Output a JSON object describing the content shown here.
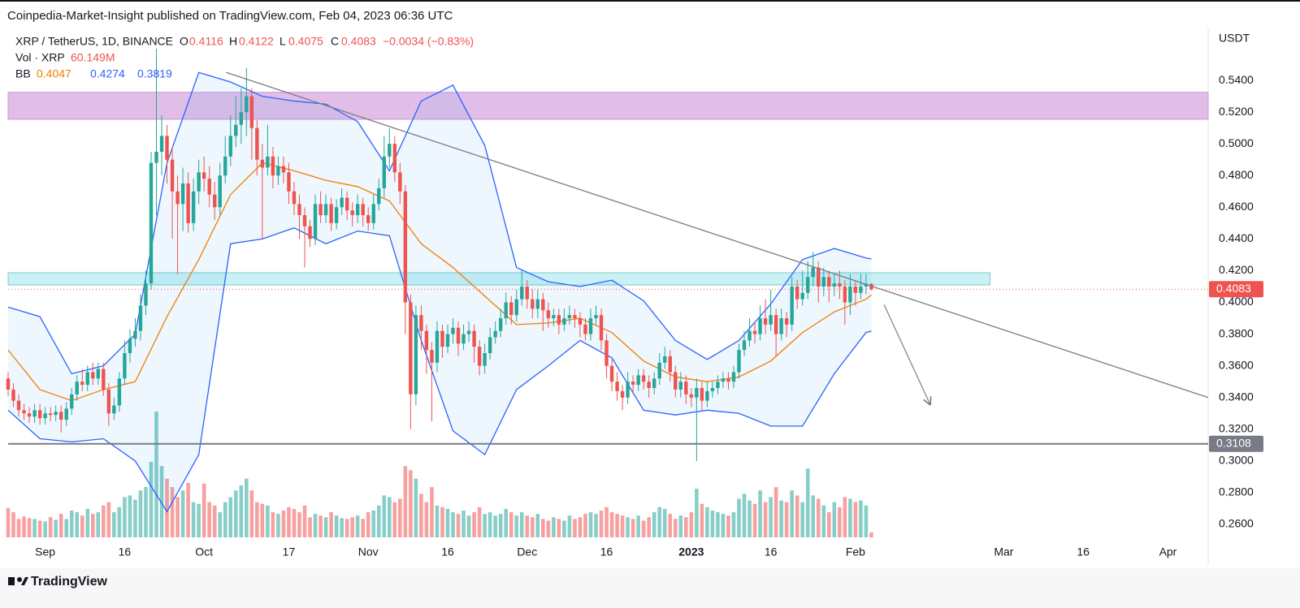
{
  "header": "Coinpedia-Market-Insight published on TradingView.com, Feb 04, 2023 06:36 UTC",
  "footer": "TradingView",
  "chart_data": {
    "type": "candlestick",
    "symbol": "XRP / TetherUS, 1D, BINANCE",
    "ohlc_letters": [
      "O",
      "H",
      "L",
      "C"
    ],
    "change": "−0.0034 (−0.83%)",
    "volume_name": "Vol · XRP",
    "volume_label": "60.149M",
    "bb_name": "BB",
    "currency": "USDT",
    "up_color": "#26a69a",
    "down_color": "#ef5350",
    "xlim": [
      0,
      226.6
    ],
    "xticks": [
      {
        "value": 7,
        "label": "Sep"
      },
      {
        "value": 22,
        "label": "16"
      },
      {
        "value": 37,
        "label": "Oct"
      },
      {
        "value": 53,
        "label": "17"
      },
      {
        "value": 68,
        "label": "Nov"
      },
      {
        "value": 83,
        "label": "16"
      },
      {
        "value": 98,
        "label": "Dec"
      },
      {
        "value": 113,
        "label": "16"
      },
      {
        "value": 129,
        "label": "2023"
      },
      {
        "value": 144,
        "label": "16"
      },
      {
        "value": 160,
        "label": "Feb"
      },
      {
        "value": 188,
        "label": "Mar"
      },
      {
        "value": 203,
        "label": "16"
      },
      {
        "value": 219,
        "label": "Apr"
      }
    ],
    "ylim": [
      0.2349,
      0.5728
    ],
    "yticks": [
      {
        "value": 0.26,
        "label": "0.2600"
      },
      {
        "value": 0.28,
        "label": "0.2800"
      },
      {
        "value": 0.3,
        "label": "0.3000"
      },
      {
        "value": 0.32,
        "label": "0.3200"
      },
      {
        "value": 0.34,
        "label": "0.3400"
      },
      {
        "value": 0.36,
        "label": "0.3600"
      },
      {
        "value": 0.38,
        "label": "0.3800"
      },
      {
        "value": 0.4,
        "label": "0.4000"
      },
      {
        "value": 0.42,
        "label": "0.4200"
      },
      {
        "value": 0.44,
        "label": "0.4400"
      },
      {
        "value": 0.46,
        "label": "0.4600"
      },
      {
        "value": 0.48,
        "label": "0.4800"
      },
      {
        "value": 0.5,
        "label": "0.5000"
      },
      {
        "value": 0.52,
        "label": "0.5200"
      },
      {
        "value": 0.54,
        "label": "0.5400"
      }
    ],
    "grid": false,
    "candles": [
      [
        0.352,
        0.356,
        0.341,
        0.345
      ],
      [
        0.345,
        0.349,
        0.334,
        0.338
      ],
      [
        0.338,
        0.342,
        0.328,
        0.332
      ],
      [
        0.332,
        0.336,
        0.326,
        0.33
      ],
      [
        0.33,
        0.334,
        0.324,
        0.328
      ],
      [
        0.328,
        0.336,
        0.324,
        0.332
      ],
      [
        0.332,
        0.336,
        0.323,
        0.327
      ],
      [
        0.327,
        0.334,
        0.323,
        0.33
      ],
      [
        0.33,
        0.334,
        0.325,
        0.329
      ],
      [
        0.329,
        0.335,
        0.325,
        0.331
      ],
      [
        0.331,
        0.335,
        0.318,
        0.326
      ],
      [
        0.326,
        0.337,
        0.322,
        0.333
      ],
      [
        0.333,
        0.346,
        0.329,
        0.342
      ],
      [
        0.342,
        0.354,
        0.338,
        0.35
      ],
      [
        0.35,
        0.358,
        0.344,
        0.348
      ],
      [
        0.348,
        0.36,
        0.344,
        0.356
      ],
      [
        0.356,
        0.362,
        0.348,
        0.352
      ],
      [
        0.352,
        0.362,
        0.348,
        0.358
      ],
      [
        0.358,
        0.362,
        0.341,
        0.345
      ],
      [
        0.345,
        0.349,
        0.322,
        0.33
      ],
      [
        0.33,
        0.34,
        0.326,
        0.335
      ],
      [
        0.335,
        0.356,
        0.331,
        0.352
      ],
      [
        0.352,
        0.376,
        0.348,
        0.368
      ],
      [
        0.368,
        0.383,
        0.362,
        0.377
      ],
      [
        0.377,
        0.39,
        0.372,
        0.382
      ],
      [
        0.382,
        0.405,
        0.376,
        0.398
      ],
      [
        0.398,
        0.42,
        0.392,
        0.412
      ],
      [
        0.412,
        0.495,
        0.408,
        0.488
      ],
      [
        0.488,
        0.56,
        0.455,
        0.495
      ],
      [
        0.495,
        0.518,
        0.48,
        0.505
      ],
      [
        0.505,
        0.512,
        0.475,
        0.49
      ],
      [
        0.49,
        0.498,
        0.44,
        0.47
      ],
      [
        0.47,
        0.48,
        0.418,
        0.462
      ],
      [
        0.462,
        0.485,
        0.445,
        0.475
      ],
      [
        0.475,
        0.482,
        0.444,
        0.45
      ],
      [
        0.45,
        0.478,
        0.445,
        0.47
      ],
      [
        0.47,
        0.49,
        0.462,
        0.482
      ],
      [
        0.482,
        0.492,
        0.47,
        0.478
      ],
      [
        0.478,
        0.486,
        0.46,
        0.468
      ],
      [
        0.468,
        0.476,
        0.452,
        0.46
      ],
      [
        0.46,
        0.488,
        0.455,
        0.48
      ],
      [
        0.48,
        0.505,
        0.475,
        0.492
      ],
      [
        0.492,
        0.518,
        0.486,
        0.505
      ],
      [
        0.505,
        0.53,
        0.498,
        0.512
      ],
      [
        0.512,
        0.535,
        0.5,
        0.52
      ],
      [
        0.52,
        0.548,
        0.505,
        0.53
      ],
      [
        0.53,
        0.535,
        0.49,
        0.51
      ],
      [
        0.51,
        0.515,
        0.48,
        0.49
      ],
      [
        0.49,
        0.5,
        0.44,
        0.485
      ],
      [
        0.485,
        0.512,
        0.48,
        0.492
      ],
      [
        0.492,
        0.498,
        0.472,
        0.48
      ],
      [
        0.48,
        0.492,
        0.474,
        0.486
      ],
      [
        0.486,
        0.492,
        0.475,
        0.482
      ],
      [
        0.482,
        0.488,
        0.462,
        0.47
      ],
      [
        0.47,
        0.476,
        0.455,
        0.462
      ],
      [
        0.462,
        0.468,
        0.44,
        0.455
      ],
      [
        0.455,
        0.46,
        0.422,
        0.448
      ],
      [
        0.448,
        0.452,
        0.435,
        0.44
      ],
      [
        0.44,
        0.468,
        0.436,
        0.462
      ],
      [
        0.462,
        0.47,
        0.45,
        0.455
      ],
      [
        0.455,
        0.468,
        0.45,
        0.462
      ],
      [
        0.462,
        0.466,
        0.445,
        0.45
      ],
      [
        0.45,
        0.465,
        0.446,
        0.46
      ],
      [
        0.46,
        0.472,
        0.455,
        0.466
      ],
      [
        0.466,
        0.47,
        0.452,
        0.458
      ],
      [
        0.458,
        0.463,
        0.448,
        0.455
      ],
      [
        0.455,
        0.468,
        0.45,
        0.462
      ],
      [
        0.462,
        0.466,
        0.448,
        0.455
      ],
      [
        0.455,
        0.46,
        0.445,
        0.45
      ],
      [
        0.45,
        0.468,
        0.446,
        0.462
      ],
      [
        0.462,
        0.478,
        0.458,
        0.472
      ],
      [
        0.472,
        0.505,
        0.466,
        0.492
      ],
      [
        0.492,
        0.51,
        0.485,
        0.5
      ],
      [
        0.5,
        0.505,
        0.476,
        0.482
      ],
      [
        0.482,
        0.488,
        0.462,
        0.47
      ],
      [
        0.47,
        0.474,
        0.38,
        0.4
      ],
      [
        0.4,
        0.405,
        0.32,
        0.342
      ],
      [
        0.342,
        0.398,
        0.335,
        0.392
      ],
      [
        0.392,
        0.398,
        0.37,
        0.382
      ],
      [
        0.382,
        0.386,
        0.355,
        0.37
      ],
      [
        0.37,
        0.375,
        0.325,
        0.362
      ],
      [
        0.362,
        0.388,
        0.356,
        0.382
      ],
      [
        0.382,
        0.386,
        0.365,
        0.372
      ],
      [
        0.372,
        0.386,
        0.368,
        0.38
      ],
      [
        0.38,
        0.39,
        0.374,
        0.384
      ],
      [
        0.384,
        0.388,
        0.366,
        0.374
      ],
      [
        0.374,
        0.386,
        0.37,
        0.38
      ],
      [
        0.38,
        0.388,
        0.375,
        0.382
      ],
      [
        0.382,
        0.386,
        0.362,
        0.372
      ],
      [
        0.372,
        0.376,
        0.354,
        0.36
      ],
      [
        0.36,
        0.374,
        0.355,
        0.368
      ],
      [
        0.368,
        0.384,
        0.364,
        0.378
      ],
      [
        0.378,
        0.388,
        0.374,
        0.382
      ],
      [
        0.382,
        0.396,
        0.378,
        0.39
      ],
      [
        0.39,
        0.406,
        0.386,
        0.4
      ],
      [
        0.4,
        0.404,
        0.386,
        0.392
      ],
      [
        0.392,
        0.408,
        0.388,
        0.402
      ],
      [
        0.402,
        0.42,
        0.398,
        0.41
      ],
      [
        0.41,
        0.414,
        0.396,
        0.402
      ],
      [
        0.402,
        0.408,
        0.39,
        0.396
      ],
      [
        0.396,
        0.408,
        0.39,
        0.402
      ],
      [
        0.402,
        0.406,
        0.382,
        0.395
      ],
      [
        0.395,
        0.4,
        0.384,
        0.39
      ],
      [
        0.39,
        0.396,
        0.385,
        0.392
      ],
      [
        0.392,
        0.396,
        0.38,
        0.386
      ],
      [
        0.386,
        0.396,
        0.382,
        0.39
      ],
      [
        0.39,
        0.398,
        0.386,
        0.392
      ],
      [
        0.392,
        0.396,
        0.384,
        0.39
      ],
      [
        0.39,
        0.394,
        0.378,
        0.386
      ],
      [
        0.386,
        0.39,
        0.376,
        0.38
      ],
      [
        0.38,
        0.396,
        0.376,
        0.39
      ],
      [
        0.39,
        0.398,
        0.386,
        0.392
      ],
      [
        0.392,
        0.396,
        0.37,
        0.376
      ],
      [
        0.376,
        0.38,
        0.352,
        0.36
      ],
      [
        0.36,
        0.364,
        0.344,
        0.35
      ],
      [
        0.35,
        0.356,
        0.338,
        0.344
      ],
      [
        0.344,
        0.348,
        0.332,
        0.34
      ],
      [
        0.34,
        0.356,
        0.336,
        0.35
      ],
      [
        0.35,
        0.354,
        0.342,
        0.348
      ],
      [
        0.348,
        0.358,
        0.344,
        0.354
      ],
      [
        0.354,
        0.358,
        0.345,
        0.35
      ],
      [
        0.35,
        0.354,
        0.34,
        0.346
      ],
      [
        0.346,
        0.356,
        0.342,
        0.352
      ],
      [
        0.352,
        0.368,
        0.348,
        0.362
      ],
      [
        0.362,
        0.372,
        0.358,
        0.366
      ],
      [
        0.366,
        0.37,
        0.35,
        0.356
      ],
      [
        0.356,
        0.36,
        0.34,
        0.345
      ],
      [
        0.345,
        0.356,
        0.34,
        0.35
      ],
      [
        0.35,
        0.354,
        0.336,
        0.342
      ],
      [
        0.342,
        0.346,
        0.334,
        0.34
      ],
      [
        0.34,
        0.352,
        0.3,
        0.346
      ],
      [
        0.346,
        0.35,
        0.332,
        0.338
      ],
      [
        0.338,
        0.35,
        0.334,
        0.344
      ],
      [
        0.344,
        0.35,
        0.34,
        0.346
      ],
      [
        0.346,
        0.354,
        0.342,
        0.35
      ],
      [
        0.35,
        0.356,
        0.346,
        0.352
      ],
      [
        0.352,
        0.356,
        0.345,
        0.35
      ],
      [
        0.35,
        0.36,
        0.346,
        0.356
      ],
      [
        0.356,
        0.374,
        0.352,
        0.37
      ],
      [
        0.37,
        0.382,
        0.366,
        0.376
      ],
      [
        0.376,
        0.39,
        0.372,
        0.382
      ],
      [
        0.382,
        0.388,
        0.374,
        0.38
      ],
      [
        0.38,
        0.398,
        0.376,
        0.39
      ],
      [
        0.39,
        0.402,
        0.38,
        0.386
      ],
      [
        0.386,
        0.408,
        0.382,
        0.392
      ],
      [
        0.392,
        0.396,
        0.366,
        0.38
      ],
      [
        0.38,
        0.396,
        0.376,
        0.39
      ],
      [
        0.39,
        0.394,
        0.378,
        0.386
      ],
      [
        0.386,
        0.416,
        0.382,
        0.41
      ],
      [
        0.41,
        0.414,
        0.396,
        0.402
      ],
      [
        0.402,
        0.42,
        0.398,
        0.406
      ],
      [
        0.406,
        0.426,
        0.402,
        0.416
      ],
      [
        0.416,
        0.432,
        0.41,
        0.422
      ],
      [
        0.422,
        0.426,
        0.4,
        0.41
      ],
      [
        0.41,
        0.422,
        0.404,
        0.416
      ],
      [
        0.416,
        0.42,
        0.4,
        0.41
      ],
      [
        0.41,
        0.418,
        0.404,
        0.412
      ],
      [
        0.412,
        0.42,
        0.402,
        0.41
      ],
      [
        0.41,
        0.414,
        0.386,
        0.4
      ],
      [
        0.4,
        0.418,
        0.392,
        0.41
      ],
      [
        0.41,
        0.414,
        0.398,
        0.406
      ],
      [
        0.406,
        0.418,
        0.402,
        0.41
      ],
      [
        0.41,
        0.418,
        0.405,
        0.4116
      ],
      [
        0.4116,
        0.4122,
        0.4075,
        0.4083
      ]
    ],
    "volume": [
      350,
      300,
      220,
      250,
      230,
      220,
      200,
      190,
      240,
      210,
      280,
      220,
      320,
      300,
      260,
      340,
      280,
      300,
      380,
      420,
      300,
      360,
      480,
      500,
      450,
      560,
      600,
      900,
      1500,
      850,
      700,
      600,
      480,
      560,
      650,
      420,
      400,
      640,
      420,
      380,
      300,
      420,
      480,
      560,
      620,
      700,
      560,
      420,
      400,
      380,
      300,
      280,
      320,
      360,
      340,
      300,
      380,
      240,
      280,
      260,
      240,
      300,
      260,
      230,
      220,
      240,
      260,
      220,
      300,
      320,
      380,
      500,
      480,
      420,
      460,
      850,
      800,
      700,
      520,
      420,
      600,
      380,
      360,
      340,
      300,
      280,
      320,
      260,
      300,
      360,
      280,
      300,
      260,
      280,
      340,
      300,
      260,
      300,
      260,
      240,
      280,
      220,
      200,
      240,
      220,
      200,
      260,
      220,
      240,
      280,
      300,
      280,
      320,
      360,
      300,
      280,
      260,
      240,
      220,
      260,
      200,
      240,
      300,
      360,
      340,
      280,
      220,
      260,
      240,
      300,
      580,
      400,
      360,
      320,
      300,
      280,
      260,
      300,
      460,
      520,
      440,
      400,
      560,
      420,
      480,
      600,
      440,
      420,
      560,
      500,
      420,
      820,
      500,
      460,
      380,
      300,
      420,
      360,
      480,
      460,
      420,
      440,
      380,
      60.149
    ],
    "bollinger": {
      "x": [
        0,
        6,
        12,
        18,
        24,
        30,
        36,
        42,
        48,
        54,
        60,
        66,
        72,
        78,
        84,
        90,
        96,
        102,
        108,
        114,
        120,
        126,
        132,
        138,
        144,
        150,
        156,
        162,
        163
      ],
      "upper": [
        0.397,
        0.391,
        0.355,
        0.36,
        0.38,
        0.488,
        0.545,
        0.539,
        0.53,
        0.527,
        0.525,
        0.514,
        0.483,
        0.527,
        0.537,
        0.499,
        0.422,
        0.413,
        0.41,
        0.414,
        0.401,
        0.376,
        0.364,
        0.376,
        0.399,
        0.427,
        0.434,
        0.428,
        0.4274
      ],
      "basis": [
        0.37,
        0.345,
        0.338,
        0.345,
        0.35,
        0.391,
        0.427,
        0.468,
        0.488,
        0.483,
        0.477,
        0.473,
        0.464,
        0.437,
        0.422,
        0.404,
        0.386,
        0.387,
        0.39,
        0.381,
        0.363,
        0.353,
        0.35,
        0.353,
        0.363,
        0.381,
        0.394,
        0.402,
        0.4047
      ],
      "lower": [
        0.332,
        0.314,
        0.312,
        0.314,
        0.3,
        0.268,
        0.304,
        0.437,
        0.44,
        0.447,
        0.437,
        0.445,
        0.442,
        0.376,
        0.319,
        0.304,
        0.345,
        0.36,
        0.376,
        0.365,
        0.332,
        0.329,
        0.332,
        0.33,
        0.322,
        0.322,
        0.355,
        0.381,
        0.3819
      ],
      "upper_color": "#2962ff",
      "basis_color": "#f57c00"
    },
    "resistance_zone": {
      "range": [
        0.5155,
        0.5325
      ],
      "color": "#e1bee7"
    },
    "support_zone": {
      "range": [
        0.411,
        0.4187
      ],
      "x_end": 185.4,
      "color": "#c9f1f6"
    },
    "support_line": 0.3108,
    "trendline": {
      "x": [
        41.2,
        226.6
      ],
      "y": [
        0.545,
        0.34
      ]
    },
    "arrow": {
      "x": [
        165.4,
        174.1
      ],
      "y": [
        0.3986,
        0.3356
      ]
    }
  }
}
